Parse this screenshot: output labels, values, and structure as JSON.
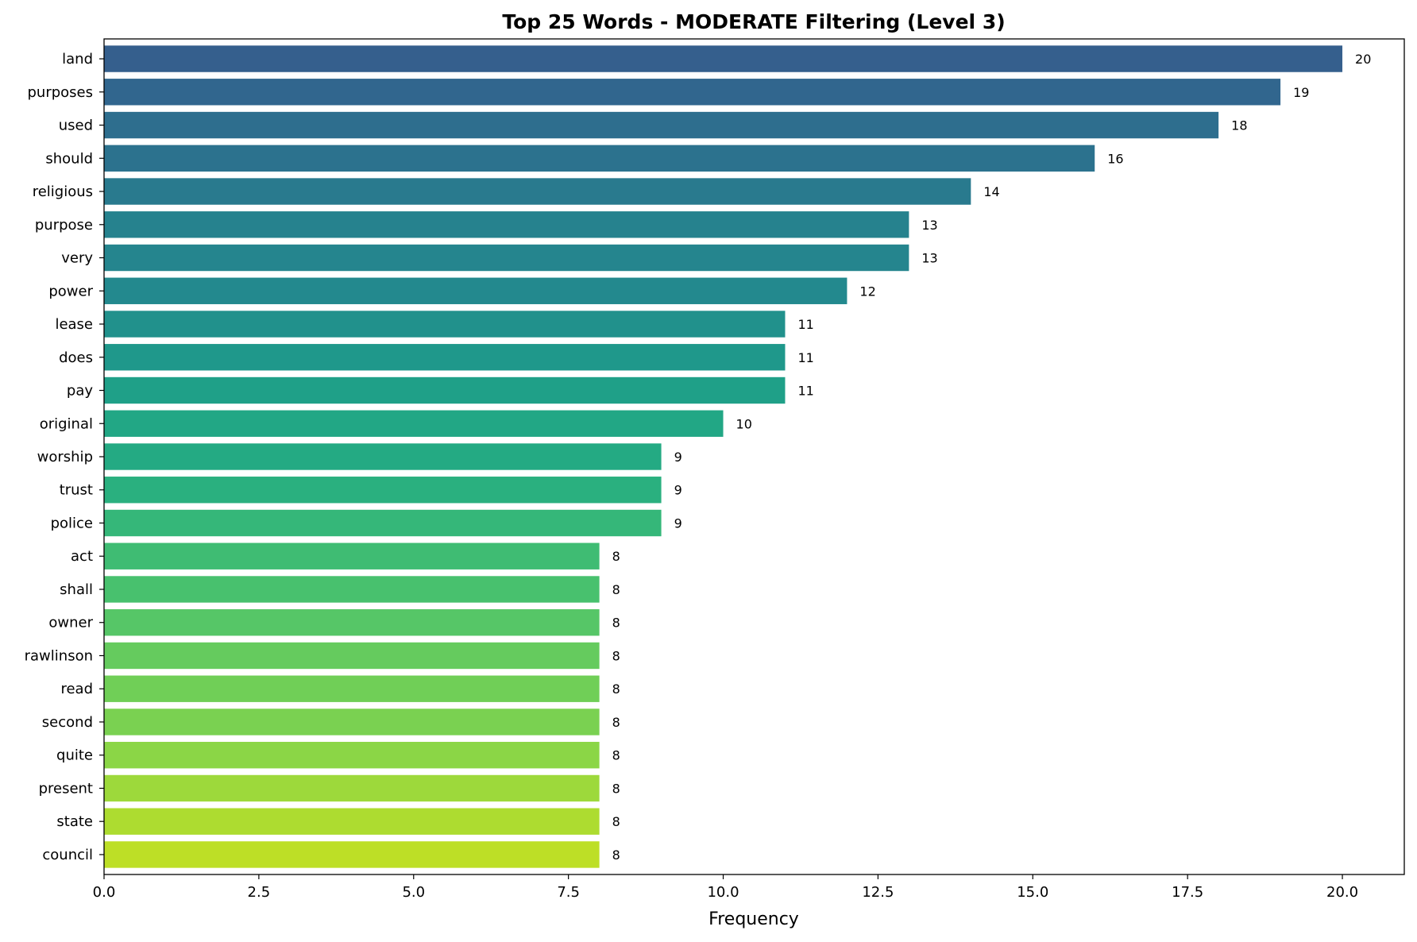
{
  "chart_data": {
    "type": "bar",
    "orientation": "horizontal",
    "title": "Top 25 Words - MODERATE Filtering (Level 3)",
    "xlabel": "Frequency",
    "ylabel": "",
    "xlim": [
      0,
      21
    ],
    "xticks": [
      0.0,
      2.5,
      5.0,
      7.5,
      10.0,
      12.5,
      15.0,
      17.5,
      20.0
    ],
    "xtick_labels": [
      "0.0",
      "2.5",
      "5.0",
      "7.5",
      "10.0",
      "12.5",
      "15.0",
      "17.5",
      "20.0"
    ],
    "grid": false,
    "legend": "none",
    "colormap": "viridis",
    "categories": [
      "land",
      "purposes",
      "used",
      "should",
      "religious",
      "purpose",
      "very",
      "power",
      "lease",
      "does",
      "pay",
      "original",
      "worship",
      "trust",
      "police",
      "act",
      "shall",
      "owner",
      "rawlinson",
      "read",
      "second",
      "quite",
      "present",
      "state",
      "council"
    ],
    "values": [
      20,
      19,
      18,
      16,
      14,
      13,
      13,
      12,
      11,
      11,
      11,
      10,
      9,
      9,
      9,
      8,
      8,
      8,
      8,
      8,
      8,
      8,
      8,
      8,
      8
    ],
    "data_labels": [
      "20",
      "19",
      "18",
      "16",
      "14",
      "13",
      "13",
      "12",
      "11",
      "11",
      "11",
      "10",
      "9",
      "9",
      "9",
      "8",
      "8",
      "8",
      "8",
      "8",
      "8",
      "8",
      "8",
      "8",
      "8"
    ],
    "colors": [
      "#355f8d",
      "#31668e",
      "#2e6e8e",
      "#2c728e",
      "#297a8e",
      "#26828e",
      "#25858e",
      "#23898e",
      "#21918c",
      "#1f988b",
      "#1fa088",
      "#22a785",
      "#24aa83",
      "#2ab07f",
      "#35b779",
      "#3fbc73",
      "#48c16e",
      "#56c667",
      "#65cb5e",
      "#70cf57",
      "#7ad151",
      "#8bd646",
      "#9dd93b",
      "#addc30",
      "#bddf26"
    ]
  }
}
